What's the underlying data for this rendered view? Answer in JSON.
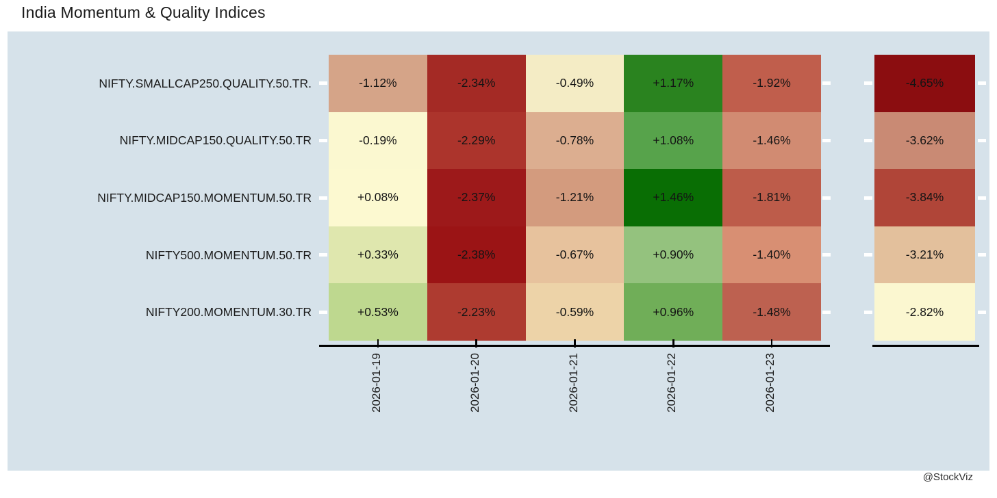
{
  "title": "India Momentum & Quality Indices",
  "watermark": "@StockViz",
  "colors": {
    "page_bg": "#ffffff",
    "panel_bg": "#d6e2ea",
    "axis": "#000000",
    "white_tick": "#ffffff",
    "cell_text": "#141414",
    "label_text": "#1a1a1a"
  },
  "chart_data": {
    "type": "heatmap",
    "title": "India Momentum & Quality Indices",
    "rows": [
      "NIFTY.SMALLCAP250.QUALITY.50.TR.",
      "NIFTY.MIDCAP150.QUALITY.50.TR",
      "NIFTY.MIDCAP150.MOMENTUM.50.TR",
      "NIFTY500.MOMENTUM.50.TR",
      "NIFTY200.MOMENTUM.30.TR"
    ],
    "columns": [
      "2026-01-19",
      "2026-01-20",
      "2026-01-21",
      "2026-01-22",
      "2026-01-23"
    ],
    "legend": "none",
    "cells": [
      [
        {
          "v": -1.12,
          "label": "-1.12%",
          "color": "#d5a488"
        },
        {
          "v": -2.34,
          "label": "-2.34%",
          "color": "#a42a25"
        },
        {
          "v": -0.49,
          "label": "-0.49%",
          "color": "#f4ecc5"
        },
        {
          "v": 1.17,
          "label": "+1.17%",
          "color": "#2a831f"
        },
        {
          "v": -1.92,
          "label": "-1.92%",
          "color": "#c05e4c"
        }
      ],
      [
        {
          "v": -0.19,
          "label": "-0.19%",
          "color": "#fbf8d0"
        },
        {
          "v": -2.29,
          "label": "-2.29%",
          "color": "#ac342c"
        },
        {
          "v": -0.78,
          "label": "-0.78%",
          "color": "#dcae90"
        },
        {
          "v": 1.08,
          "label": "+1.08%",
          "color": "#57a34b"
        },
        {
          "v": -1.46,
          "label": "-1.46%",
          "color": "#d18b72"
        }
      ],
      [
        {
          "v": 0.08,
          "label": "+0.08%",
          "color": "#fcf9d0"
        },
        {
          "v": -2.37,
          "label": "-2.37%",
          "color": "#9d191a"
        },
        {
          "v": -1.21,
          "label": "-1.21%",
          "color": "#d39b7e"
        },
        {
          "v": 1.46,
          "label": "+1.46%",
          "color": "#096e04"
        },
        {
          "v": -1.81,
          "label": "-1.81%",
          "color": "#bd5c4a"
        }
      ],
      [
        {
          "v": 0.33,
          "label": "+0.33%",
          "color": "#dfe7ae"
        },
        {
          "v": -2.38,
          "label": "-2.38%",
          "color": "#9b1415"
        },
        {
          "v": -0.67,
          "label": "-0.67%",
          "color": "#e7c29d"
        },
        {
          "v": 0.9,
          "label": "+0.90%",
          "color": "#94c27e"
        },
        {
          "v": -1.4,
          "label": "-1.40%",
          "color": "#d88f73"
        }
      ],
      [
        {
          "v": 0.53,
          "label": "+0.53%",
          "color": "#bed88f"
        },
        {
          "v": -2.23,
          "label": "-2.23%",
          "color": "#ae3b30"
        },
        {
          "v": -0.59,
          "label": "-0.59%",
          "color": "#edd3a8"
        },
        {
          "v": 0.96,
          "label": "+0.96%",
          "color": "#70ae58"
        },
        {
          "v": -1.48,
          "label": "-1.48%",
          "color": "#bd6150"
        }
      ]
    ],
    "totals": [
      {
        "v": -4.65,
        "label": "-4.65%",
        "color": "#8b0d10"
      },
      {
        "v": -3.62,
        "label": "-3.62%",
        "color": "#c98a74"
      },
      {
        "v": -3.84,
        "label": "-3.84%",
        "color": "#b04538"
      },
      {
        "v": -3.21,
        "label": "-3.21%",
        "color": "#e3c09c"
      },
      {
        "v": -2.82,
        "label": "-2.82%",
        "color": "#fbf7d0"
      }
    ]
  }
}
